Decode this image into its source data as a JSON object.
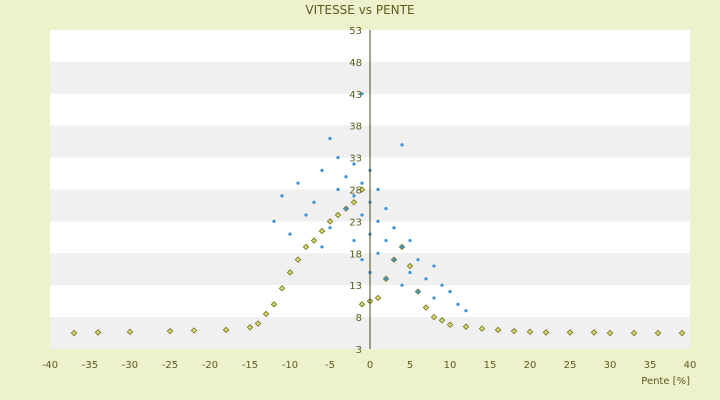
{
  "chart_data": {
    "type": "scatter",
    "title": "VITESSE vs PENTE",
    "xlabel": "Pente [%]",
    "ylabel": "",
    "xlim": [
      -40,
      40
    ],
    "ylim": [
      3,
      53
    ],
    "x_ticks": [
      "-40",
      "-35",
      "-30",
      "-25",
      "-20",
      "-15",
      "-10",
      "-5",
      "0",
      "5",
      "10",
      "15",
      "20",
      "25",
      "30",
      "35",
      "40"
    ],
    "y_ticks": [
      "3",
      "8",
      "13",
      "18",
      "23",
      "28",
      "33",
      "38",
      "43",
      "48",
      "53"
    ],
    "grid": "horizontal bands",
    "legend": "none",
    "colors": {
      "series_blue": "#3f8fd6",
      "series_olive": "#6d6d12",
      "olive_fill": "#d8dc7a",
      "band_light": "#ffffff",
      "band_dark": "#f0f0f0",
      "axis": "#4a4a14",
      "text": "#5b5b1e",
      "background": "#eef2cc"
    },
    "series": [
      {
        "marker": "dot",
        "color": "#3f8fd6",
        "description_points": [
          [
            -12,
            23
          ],
          [
            -11,
            27
          ],
          [
            -10,
            21
          ],
          [
            -9,
            29
          ],
          [
            -8,
            24
          ],
          [
            -7,
            26
          ],
          [
            -6,
            31
          ],
          [
            -6,
            19
          ],
          [
            -5,
            36
          ],
          [
            -5,
            22
          ],
          [
            -4,
            33
          ],
          [
            -4,
            28
          ],
          [
            -3,
            30
          ],
          [
            -3,
            25
          ],
          [
            -2,
            32
          ],
          [
            -2,
            27
          ],
          [
            -2,
            20
          ],
          [
            -1,
            43
          ],
          [
            -1,
            29
          ],
          [
            -1,
            24
          ],
          [
            -1,
            17
          ],
          [
            0,
            31
          ],
          [
            0,
            26
          ],
          [
            0,
            21
          ],
          [
            0,
            15
          ],
          [
            1,
            28
          ],
          [
            1,
            23
          ],
          [
            1,
            18
          ],
          [
            2,
            25
          ],
          [
            2,
            20
          ],
          [
            2,
            14
          ],
          [
            3,
            22
          ],
          [
            3,
            17
          ],
          [
            4,
            35
          ],
          [
            4,
            19
          ],
          [
            4,
            13
          ],
          [
            5,
            20
          ],
          [
            5,
            15
          ],
          [
            6,
            17
          ],
          [
            6,
            12
          ],
          [
            7,
            14
          ],
          [
            8,
            16
          ],
          [
            8,
            11
          ],
          [
            9,
            13
          ],
          [
            10,
            12
          ],
          [
            11,
            10
          ],
          [
            12,
            9
          ]
        ]
      },
      {
        "marker": "diamond",
        "color": "#6d6d12",
        "description_points": [
          [
            -37,
            5.5
          ],
          [
            -34,
            5.6
          ],
          [
            -30,
            5.7
          ],
          [
            -25,
            5.8
          ],
          [
            -22,
            5.9
          ],
          [
            -18,
            6.0
          ],
          [
            -15,
            6.4
          ],
          [
            -14,
            7.0
          ],
          [
            -13,
            8.5
          ],
          [
            -12,
            10.0
          ],
          [
            -11,
            12.5
          ],
          [
            -10,
            15.0
          ],
          [
            -9,
            17.0
          ],
          [
            -8,
            19.0
          ],
          [
            -7,
            20.0
          ],
          [
            -6,
            21.5
          ],
          [
            -5,
            23.0
          ],
          [
            -4,
            24.0
          ],
          [
            -3,
            25.0
          ],
          [
            -2,
            26.0
          ],
          [
            -1,
            28.0
          ],
          [
            -1,
            10.0
          ],
          [
            0,
            10.5
          ],
          [
            1,
            11.0
          ],
          [
            2,
            14.0
          ],
          [
            3,
            17.0
          ],
          [
            4,
            19.0
          ],
          [
            5,
            16.0
          ],
          [
            6,
            12.0
          ],
          [
            7,
            9.5
          ],
          [
            8,
            8.0
          ],
          [
            9,
            7.5
          ],
          [
            10,
            6.8
          ],
          [
            12,
            6.5
          ],
          [
            14,
            6.2
          ],
          [
            16,
            6.0
          ],
          [
            18,
            5.8
          ],
          [
            20,
            5.7
          ],
          [
            22,
            5.6
          ],
          [
            25,
            5.6
          ],
          [
            28,
            5.6
          ],
          [
            30,
            5.5
          ],
          [
            33,
            5.5
          ],
          [
            36,
            5.5
          ],
          [
            39,
            5.5
          ]
        ]
      }
    ]
  }
}
